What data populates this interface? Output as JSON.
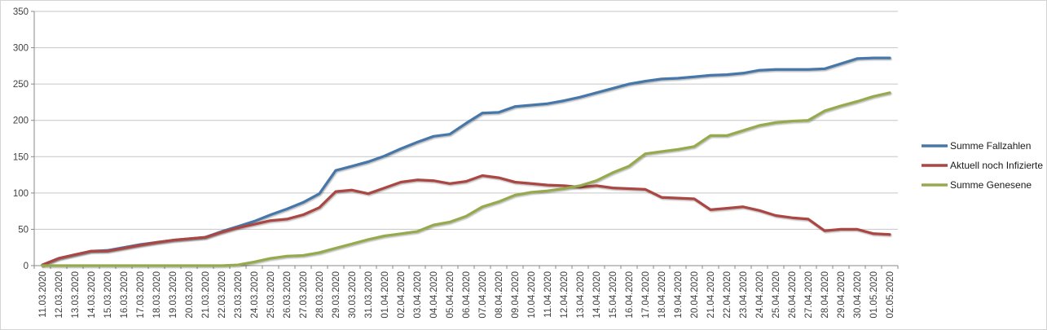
{
  "chart_data": {
    "type": "line",
    "title": "",
    "xlabel": "",
    "ylabel": "",
    "ylim": [
      0,
      350
    ],
    "y_ticks": [
      0,
      50,
      100,
      150,
      200,
      250,
      300,
      350
    ],
    "grid": true,
    "legend_position": "right",
    "x_labels": [
      "11.03.2020",
      "12.03.2020",
      "13.03.2020",
      "14.03.2020",
      "15.03.2020",
      "16.03.2020",
      "17.03.2020",
      "18.03.2020",
      "19.03.2020",
      "20.03.2020",
      "21.03.2020",
      "22.03.2020",
      "23.03.2020",
      "24.03.2020",
      "25.03.2020",
      "26.03.2020",
      "27.03.2020",
      "28.03.2020",
      "29.03.2020",
      "30.03.2020",
      "31.03.2020",
      "01.04.2020",
      "02.04.2020",
      "03.04.2020",
      "04.04.2020",
      "05.04.2020",
      "06.04.2020",
      "07.04.2020",
      "08.04.2020",
      "09.04.2020",
      "10.04.2020",
      "11.04.2020",
      "12.04.2020",
      "13.04.2020",
      "14.04.2020",
      "15.04.2020",
      "16.04.2020",
      "17.04.2020",
      "18.04.2020",
      "19.04.2020",
      "20.04.2020",
      "21.04.2020",
      "22.04.2020",
      "23.04.2020",
      "24.04.2020",
      "25.04.2020",
      "26.04.2020",
      "27.04.2020",
      "28.04.2020",
      "29.04.2020",
      "30.04.2020",
      "01.05.2020",
      "02.05.2020"
    ],
    "series": [
      {
        "name": "Summe Fallzahlen",
        "color": "#4677A9",
        "values": [
          1,
          10,
          15,
          20,
          21,
          25,
          29,
          32,
          35,
          37,
          39,
          47,
          54,
          61,
          70,
          78,
          87,
          99,
          131,
          137,
          143,
          151,
          161,
          170,
          178,
          181,
          196,
          210,
          211,
          219,
          221,
          223,
          227,
          232,
          238,
          244,
          250,
          254,
          257,
          258,
          260,
          262,
          263,
          265,
          269,
          270,
          270,
          270,
          271,
          278,
          285,
          286,
          286
        ]
      },
      {
        "name": "Aktuell noch Infizierte",
        "color": "#AA4643",
        "values": [
          1,
          10,
          15,
          20,
          20,
          24,
          28,
          32,
          35,
          37,
          39,
          46,
          52,
          57,
          62,
          64,
          70,
          80,
          102,
          104,
          99,
          107,
          115,
          118,
          117,
          113,
          116,
          124,
          121,
          115,
          113,
          111,
          110,
          108,
          110,
          107,
          106,
          105,
          94,
          93,
          92,
          77,
          79,
          81,
          76,
          69,
          66,
          64,
          48,
          50,
          50,
          44,
          43
        ]
      },
      {
        "name": "Summe Genesene",
        "color": "#95AA4E",
        "values": [
          0,
          0,
          0,
          0,
          0,
          0,
          0,
          0,
          0,
          0,
          0,
          0,
          1,
          5,
          10,
          13,
          14,
          18,
          24,
          30,
          36,
          41,
          44,
          47,
          56,
          60,
          68,
          81,
          88,
          97,
          101,
          103,
          106,
          110,
          117,
          128,
          137,
          154,
          157,
          160,
          164,
          179,
          179,
          186,
          193,
          197,
          199,
          200,
          213,
          220,
          226,
          233,
          238
        ]
      }
    ]
  },
  "colors": {
    "background": "#ffffff",
    "frame_border": "#d4d4d4",
    "gridline": "#c6c6c6",
    "axis": "#898989",
    "axis_label": "#3f3f3f",
    "legend_text": "#1a1a1a"
  }
}
